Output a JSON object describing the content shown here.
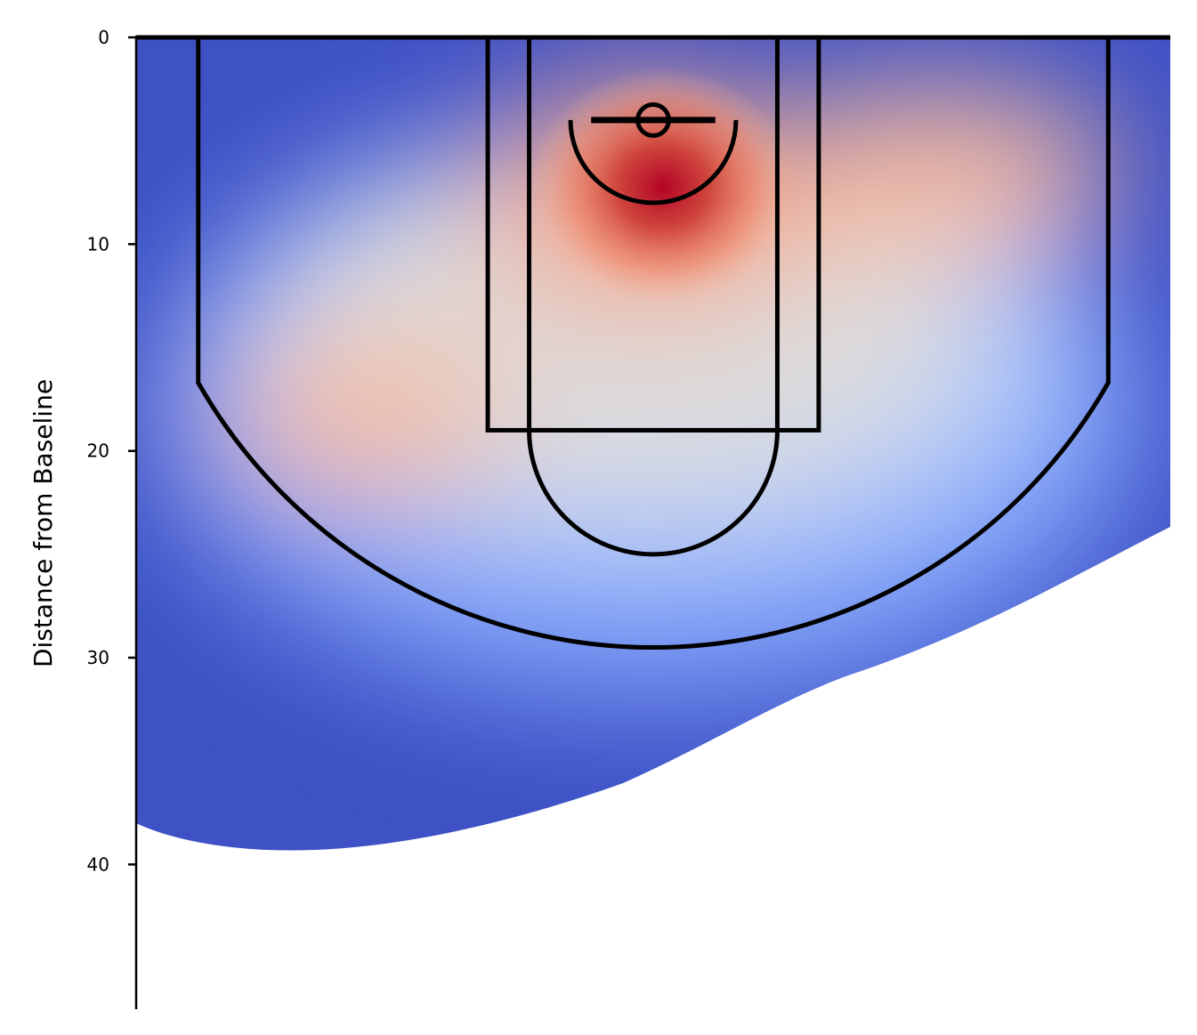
{
  "chart_data": {
    "type": "heatmap",
    "subtype": "basketball shot density (kde) on half court",
    "title": "",
    "xlabel": "",
    "ylabel": "Distance from Baseline",
    "ylim": [
      0,
      47
    ],
    "y_inverted": true,
    "xlim": [
      -25,
      25
    ],
    "x_axis_visible": false,
    "yticks": [
      0,
      10,
      20,
      30,
      40
    ],
    "ytick_labels": [
      "0",
      "10",
      "20",
      "30",
      "40"
    ],
    "colormap": "coolwarm",
    "grid": false,
    "legend": "none",
    "density_hotspots": [
      {
        "x": 0,
        "y": 7,
        "intensity": 1.0
      },
      {
        "x": 12,
        "y": 7,
        "intensity": 0.6
      },
      {
        "x": -12,
        "y": 18.5,
        "intensity": 0.6
      }
    ],
    "court": {
      "hoop_center": [
        0,
        4
      ],
      "hoop_radius": 0.75,
      "backboard_y": 4,
      "backboard_half_width": 3,
      "restricted_arc_radius": 4,
      "outer_lane_half_width": 8,
      "inner_lane_half_width": 6,
      "free_throw_line_y": 19,
      "free_throw_circle_radius": 6,
      "corner_three_x": 22,
      "corner_three_end_y": 16.7,
      "three_point_bottom_y": 29.3
    },
    "colors": {
      "low": "#3b4cc0",
      "mid": "#dddddd",
      "high": "#b40426",
      "lines": "#000000"
    }
  }
}
